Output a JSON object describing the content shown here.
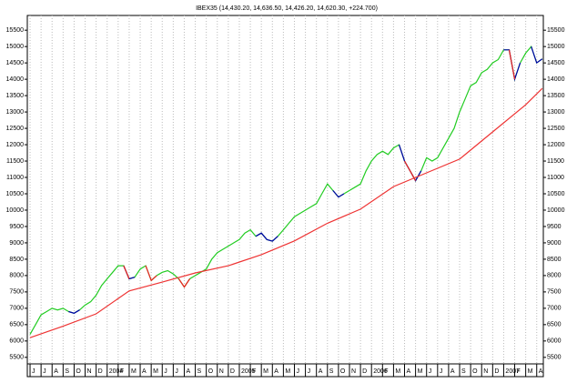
{
  "chart_data": {
    "type": "line",
    "title": "IBEX35 (14,430.20, 14,636.50, 14,426.20, 14,620.30, +224.700)",
    "x": [
      0,
      0.5,
      1,
      1.5,
      2,
      2.5,
      3,
      3.5,
      4,
      4.5,
      5,
      5.5,
      6,
      6.5,
      7,
      7.5,
      8,
      8.5,
      9,
      9.5,
      10,
      10.5,
      11,
      11.5,
      12,
      12.5,
      13,
      13.5,
      14,
      14.5,
      15,
      15.5,
      16,
      16.5,
      17,
      17.5,
      18,
      18.5,
      19,
      19.5,
      20,
      20.5,
      21,
      21.5,
      22,
      22.5,
      23,
      23.5,
      24,
      24.5,
      25,
      25.5,
      26,
      26.5,
      27,
      27.5,
      28,
      28.5,
      29,
      29.5,
      30,
      30.5,
      31,
      31.5,
      32,
      32.5,
      33,
      33.5,
      34,
      34.5,
      35,
      35.5,
      36,
      36.5,
      37,
      37.5,
      38,
      38.5,
      39,
      39.5,
      40,
      40.5,
      41,
      41.5,
      42,
      42.5,
      43,
      43.5,
      44,
      44.5,
      45,
      45.5,
      46,
      46.5
    ],
    "series": [
      {
        "color": "#22cc22",
        "values": [
          6200,
          6500,
          6800,
          6900,
          7000,
          6950,
          7000,
          6900,
          6850,
          6950,
          7100,
          7200,
          7400,
          7700,
          7900,
          8100,
          8300,
          8300,
          7900,
          7950,
          8200,
          8300,
          7850,
          8000,
          8100,
          8150,
          8050,
          7900,
          7650,
          7900,
          8000,
          8100,
          8200,
          8500,
          8700,
          8800,
          8900,
          9000,
          9100,
          9300,
          9400,
          9200,
          9300,
          9100,
          9050,
          9200,
          9400,
          9600,
          9800,
          9900,
          10000,
          10100,
          10200,
          10500,
          10800,
          10600,
          10400,
          10500,
          10600,
          10700,
          10800,
          11200,
          11500,
          11700,
          11800,
          11700,
          11900,
          12000,
          11500,
          11200,
          10900,
          11200,
          11600,
          11500,
          11600,
          11900,
          12200,
          12500,
          13000,
          13400,
          13800,
          13900,
          14200,
          14300,
          14500,
          14600,
          14900,
          14900,
          14000,
          14500,
          14800,
          15000,
          14500,
          14620
        ]
      },
      {
        "color": "#0000aa",
        "values": [
          null,
          null,
          null,
          null,
          null,
          null,
          null,
          6900,
          6850,
          6950,
          null,
          null,
          null,
          null,
          null,
          null,
          null,
          8300,
          7900,
          7950,
          null,
          null,
          null,
          null,
          null,
          null,
          null,
          null,
          null,
          null,
          null,
          null,
          null,
          null,
          null,
          null,
          null,
          null,
          null,
          null,
          null,
          9200,
          9300,
          9100,
          9050,
          9200,
          null,
          null,
          null,
          null,
          null,
          null,
          null,
          null,
          null,
          10600,
          10400,
          10500,
          null,
          null,
          null,
          null,
          null,
          null,
          null,
          null,
          null,
          12000,
          11500,
          11200,
          10900,
          11200,
          null,
          null,
          null,
          null,
          null,
          null,
          null,
          null,
          null,
          null,
          null,
          null,
          null,
          null,
          14900,
          14900,
          14000,
          14500,
          null,
          15000,
          14500,
          14620
        ]
      },
      {
        "color": "#ee2222",
        "values": [
          null,
          null,
          null,
          null,
          null,
          null,
          null,
          null,
          null,
          null,
          null,
          null,
          null,
          null,
          null,
          null,
          null,
          8300,
          7900,
          null,
          null,
          8300,
          7850,
          8000,
          null,
          null,
          null,
          7900,
          7650,
          7900,
          null,
          null,
          null,
          null,
          null,
          null,
          null,
          null,
          null,
          null,
          null,
          null,
          null,
          null,
          null,
          null,
          null,
          null,
          null,
          null,
          null,
          null,
          null,
          null,
          null,
          null,
          null,
          null,
          null,
          null,
          null,
          null,
          null,
          null,
          null,
          null,
          null,
          null,
          11500,
          11200,
          10900,
          null,
          null,
          null,
          null,
          null,
          null,
          null,
          null,
          null,
          null,
          null,
          null,
          null,
          null,
          null,
          null,
          14900,
          14000,
          null,
          null,
          null,
          null,
          null
        ]
      },
      {
        "color": "#ee3333",
        "x": [
          0,
          3,
          6,
          9,
          12,
          15,
          18,
          21,
          24,
          27,
          30,
          33,
          36,
          39,
          42,
          45,
          46.5
        ],
        "values": [
          6100,
          6450,
          6830,
          7530,
          7800,
          8080,
          8300,
          8640,
          9060,
          9600,
          10030,
          10720,
          11140,
          11560,
          12390,
          13220,
          13720
        ]
      }
    ],
    "xlim": [
      -0.25,
      46.6
    ],
    "xticks": [
      {
        "value": 0,
        "label": "J"
      },
      {
        "value": 1,
        "label": "J"
      },
      {
        "value": 2,
        "label": "A"
      },
      {
        "value": 3,
        "label": "S"
      },
      {
        "value": 4,
        "label": "O"
      },
      {
        "value": 5,
        "label": "N"
      },
      {
        "value": 6,
        "label": "D"
      },
      {
        "value": 7,
        "label": "2004"
      },
      {
        "value": 8,
        "label": "F"
      },
      {
        "value": 9,
        "label": "M"
      },
      {
        "value": 10,
        "label": "A"
      },
      {
        "value": 11,
        "label": "M"
      },
      {
        "value": 12,
        "label": "J"
      },
      {
        "value": 13,
        "label": "J"
      },
      {
        "value": 14,
        "label": "A"
      },
      {
        "value": 15,
        "label": "S"
      },
      {
        "value": 16,
        "label": "O"
      },
      {
        "value": 17,
        "label": "N"
      },
      {
        "value": 18,
        "label": "D"
      },
      {
        "value": 19,
        "label": "2005"
      },
      {
        "value": 20,
        "label": "F"
      },
      {
        "value": 21,
        "label": "M"
      },
      {
        "value": 22,
        "label": "A"
      },
      {
        "value": 23,
        "label": "M"
      },
      {
        "value": 24,
        "label": "J"
      },
      {
        "value": 25,
        "label": "J"
      },
      {
        "value": 26,
        "label": "A"
      },
      {
        "value": 27,
        "label": "S"
      },
      {
        "value": 28,
        "label": "O"
      },
      {
        "value": 29,
        "label": "N"
      },
      {
        "value": 30,
        "label": "D"
      },
      {
        "value": 31,
        "label": "2006"
      },
      {
        "value": 32,
        "label": "F"
      },
      {
        "value": 33,
        "label": "M"
      },
      {
        "value": 34,
        "label": "A"
      },
      {
        "value": 35,
        "label": "M"
      },
      {
        "value": 36,
        "label": "J"
      },
      {
        "value": 37,
        "label": "J"
      },
      {
        "value": 38,
        "label": "A"
      },
      {
        "value": 39,
        "label": "S"
      },
      {
        "value": 40,
        "label": "O"
      },
      {
        "value": 41,
        "label": "N"
      },
      {
        "value": 42,
        "label": "D"
      },
      {
        "value": 43,
        "label": "2007"
      },
      {
        "value": 44,
        "label": "F"
      },
      {
        "value": 45,
        "label": "M"
      },
      {
        "value": 46,
        "label": "A"
      }
    ],
    "ylim": [
      5300,
      15950
    ],
    "yticks": [
      5500,
      6000,
      6500,
      7000,
      7500,
      8000,
      8500,
      9000,
      9500,
      10000,
      10500,
      11000,
      11500,
      12000,
      12500,
      13000,
      13500,
      14000,
      14500,
      15000,
      15500
    ],
    "grid": true
  }
}
